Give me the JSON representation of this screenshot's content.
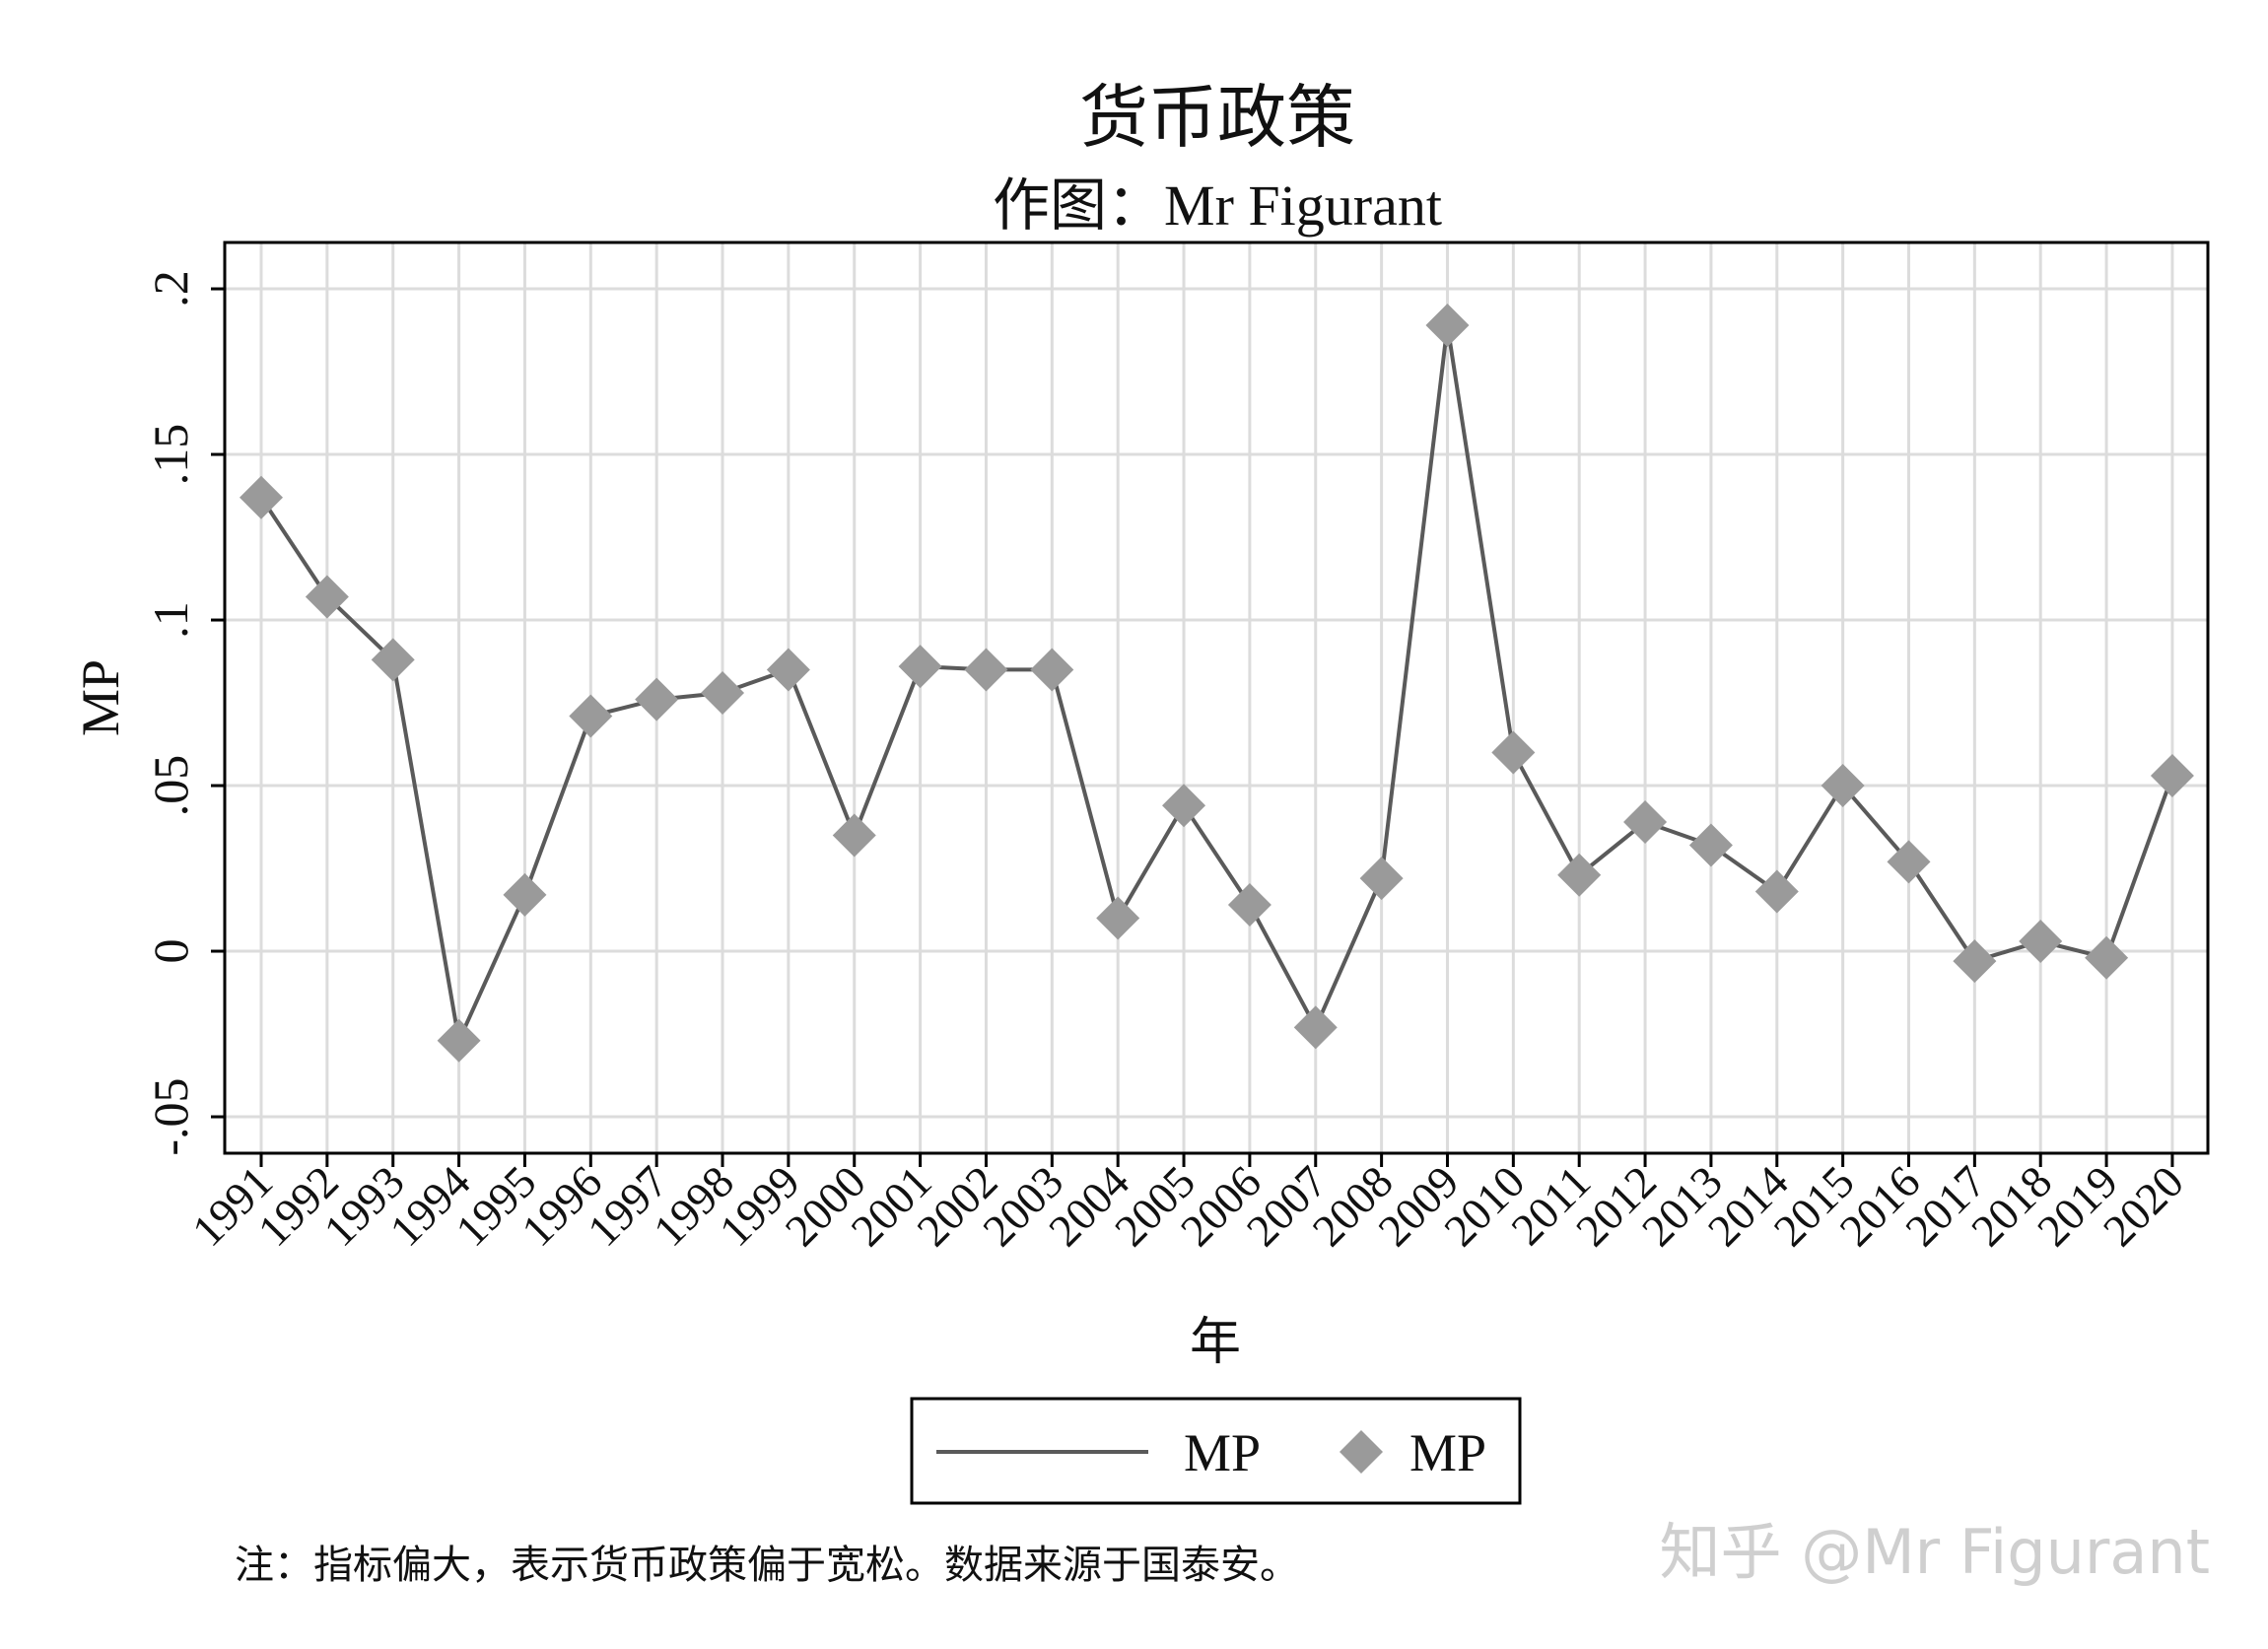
{
  "chart_data": {
    "type": "line",
    "title": "货币政策",
    "subtitle": "作图：Mr Figurant",
    "xlabel": "年",
    "ylabel": "MP",
    "categories": [
      "1991",
      "1992",
      "1993",
      "1994",
      "1995",
      "1996",
      "1997",
      "1998",
      "1999",
      "2000",
      "2001",
      "2002",
      "2003",
      "2004",
      "2005",
      "2006",
      "2007",
      "2008",
      "2009",
      "2010",
      "2011",
      "2012",
      "2013",
      "2014",
      "2015",
      "2016",
      "2017",
      "2018",
      "2019",
      "2020"
    ],
    "series": [
      {
        "name": "MP",
        "values": [
          0.137,
          0.107,
          0.088,
          -0.027,
          0.017,
          0.071,
          0.076,
          0.078,
          0.085,
          0.035,
          0.086,
          0.085,
          0.085,
          0.01,
          0.044,
          0.014,
          -0.023,
          0.022,
          0.189,
          0.06,
          0.023,
          0.039,
          0.032,
          0.018,
          0.05,
          0.027,
          -0.003,
          0.003,
          -0.002,
          0.053
        ]
      }
    ],
    "yticks": [
      -0.05,
      0,
      0.05,
      0.1,
      0.15,
      0.2
    ],
    "ytick_labels": [
      "-.05",
      "0",
      ".05",
      ".1",
      ".15",
      ".2"
    ],
    "ylim": [
      -0.061,
      0.214
    ],
    "grid": true,
    "legend": {
      "placement": "bottom",
      "entries": [
        {
          "label": "MP",
          "marker": "line"
        },
        {
          "label": "MP",
          "marker": "diamond"
        }
      ]
    },
    "line_color": "#5a5a5a",
    "marker_color": "#9a9a9a",
    "grid_color": "#dcdcdc"
  },
  "note": "注：指标偏大，表示货币政策偏于宽松。数据来源于国泰安。",
  "watermark": "知乎 @Mr Figurant"
}
